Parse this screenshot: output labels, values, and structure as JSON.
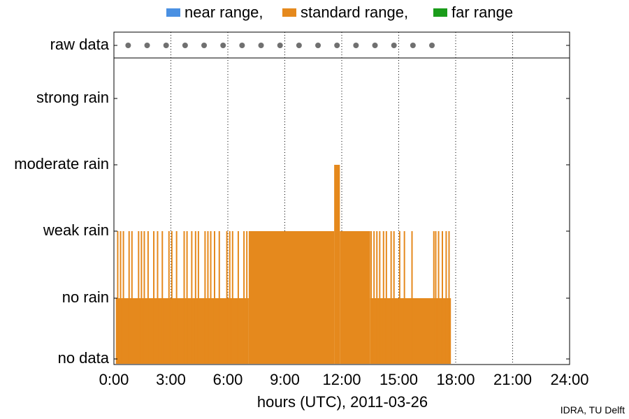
{
  "legend": [
    {
      "label": "near range,",
      "color": "#4a90e2"
    },
    {
      "label": "standard range,",
      "color": "#e5891d"
    },
    {
      "label": "far range",
      "color": "#1a9c1a"
    }
  ],
  "credit": "IDRA, TU Delft",
  "chart_data": {
    "type": "bar",
    "xlabel": "hours (UTC), 2011-03-26",
    "ylabel": "",
    "xlim": [
      0,
      24
    ],
    "x_ticks": [
      0,
      3,
      6,
      9,
      12,
      15,
      18,
      21,
      24
    ],
    "x_tick_labels": [
      "0:00",
      "3:00",
      "6:00",
      "9:00",
      "12:00",
      "15:00",
      "18:00",
      "21:00",
      "24:00"
    ],
    "y_categories": [
      "no data",
      "no rain",
      "weak rain",
      "moderate rain",
      "strong rain"
    ],
    "raw_data_row_label": "raw data",
    "raw_data_times": [
      0.75,
      1.75,
      2.75,
      3.75,
      4.75,
      5.75,
      6.75,
      7.75,
      8.75,
      9.75,
      10.75,
      11.75,
      12.75,
      13.75,
      14.75,
      15.75,
      16.75
    ],
    "grid": "vertical dotted at 3-hour ticks",
    "legend_position": "top-center",
    "series": [
      {
        "name": "standard range",
        "color": "#e5891d",
        "segments": [
          {
            "start": 0.1,
            "end": 7.1,
            "level": 1
          },
          {
            "start": 7.1,
            "end": 11.6,
            "level": 2
          },
          {
            "start": 11.6,
            "end": 11.9,
            "level": 3
          },
          {
            "start": 11.9,
            "end": 13.5,
            "level": 2
          },
          {
            "start": 13.5,
            "end": 17.75,
            "level": 1
          }
        ],
        "weak_rain_spikes": [
          0.2,
          0.35,
          0.5,
          0.8,
          0.95,
          1.3,
          1.45,
          1.6,
          1.8,
          2.1,
          2.3,
          2.55,
          2.9,
          3.05,
          3.3,
          3.7,
          3.85,
          4.1,
          4.3,
          4.45,
          4.8,
          4.95,
          5.1,
          5.3,
          5.55,
          5.95,
          6.1,
          6.25,
          6.55,
          6.85,
          7.0,
          13.55,
          13.7,
          13.85,
          14.0,
          14.2,
          14.35,
          14.6,
          14.75,
          15.05,
          15.3,
          15.7,
          16.85,
          16.95,
          17.1,
          17.3,
          17.5,
          17.65
        ]
      }
    ]
  }
}
